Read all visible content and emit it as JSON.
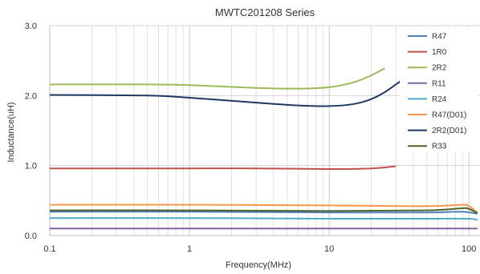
{
  "chart_data": {
    "type": "line",
    "title": "MWTC201208 Series",
    "xlabel": "Frequency(MHz)",
    "ylabel": "Inductance(uH)",
    "x_scale": "log",
    "xlim": [
      0.1,
      120
    ],
    "ylim": [
      0,
      3.0
    ],
    "x_ticks": [
      {
        "value": 0.1,
        "label": "0.1"
      },
      {
        "value": 1,
        "label": "1"
      },
      {
        "value": 10,
        "label": "10"
      },
      {
        "value": 100,
        "label": "100"
      }
    ],
    "y_ticks": [
      {
        "value": 0,
        "label": "0.0"
      },
      {
        "value": 1,
        "label": "1.0"
      },
      {
        "value": 2,
        "label": "2.0"
      },
      {
        "value": 3,
        "label": "3.0"
      }
    ],
    "grid": true,
    "legend_position": "right",
    "series": [
      {
        "name": "R47",
        "color": "#4f81bd",
        "x": [
          0.1,
          1,
          10,
          50,
          90,
          115
        ],
        "y": [
          0.34,
          0.34,
          0.33,
          0.33,
          0.34,
          0.31
        ]
      },
      {
        "name": "1R0",
        "color": "#c0504d",
        "x": [
          0.1,
          0.5,
          1,
          3,
          10,
          20,
          30
        ],
        "y": [
          0.96,
          0.96,
          0.96,
          0.96,
          0.95,
          0.96,
          0.99
        ]
      },
      {
        "name": "2R2",
        "color": "#9bbb59",
        "x": [
          0.1,
          0.5,
          1,
          3,
          6,
          10,
          15,
          20,
          25
        ],
        "y": [
          2.16,
          2.16,
          2.15,
          2.11,
          2.1,
          2.12,
          2.19,
          2.29,
          2.39
        ]
      },
      {
        "name": "R11",
        "color": "#8064a2",
        "x": [
          0.1,
          1,
          10,
          50,
          115
        ],
        "y": [
          0.1,
          0.1,
          0.1,
          0.1,
          0.1
        ]
      },
      {
        "name": "R24",
        "color": "#4bacc6",
        "x": [
          0.1,
          1,
          10,
          50,
          100,
          115
        ],
        "y": [
          0.25,
          0.25,
          0.24,
          0.24,
          0.24,
          0.22
        ]
      },
      {
        "name": "R47(D01)",
        "color": "#f79646",
        "x": [
          0.1,
          1,
          10,
          50,
          90,
          100,
          115
        ],
        "y": [
          0.44,
          0.44,
          0.43,
          0.42,
          0.44,
          0.42,
          0.33
        ]
      },
      {
        "name": "2R2(D01)",
        "color": "#1f3864",
        "x": [
          0.1,
          0.5,
          1,
          3,
          6,
          10,
          15,
          20,
          25,
          30,
          35
        ],
        "y": [
          2.01,
          2.0,
          1.97,
          1.9,
          1.86,
          1.85,
          1.88,
          1.95,
          2.05,
          2.16,
          2.25
        ]
      },
      {
        "name": "R33",
        "color": "#4f6228",
        "x": [
          0.1,
          1,
          10,
          50,
          90,
          100,
          115
        ],
        "y": [
          0.36,
          0.36,
          0.35,
          0.36,
          0.39,
          0.38,
          0.32
        ]
      }
    ]
  }
}
